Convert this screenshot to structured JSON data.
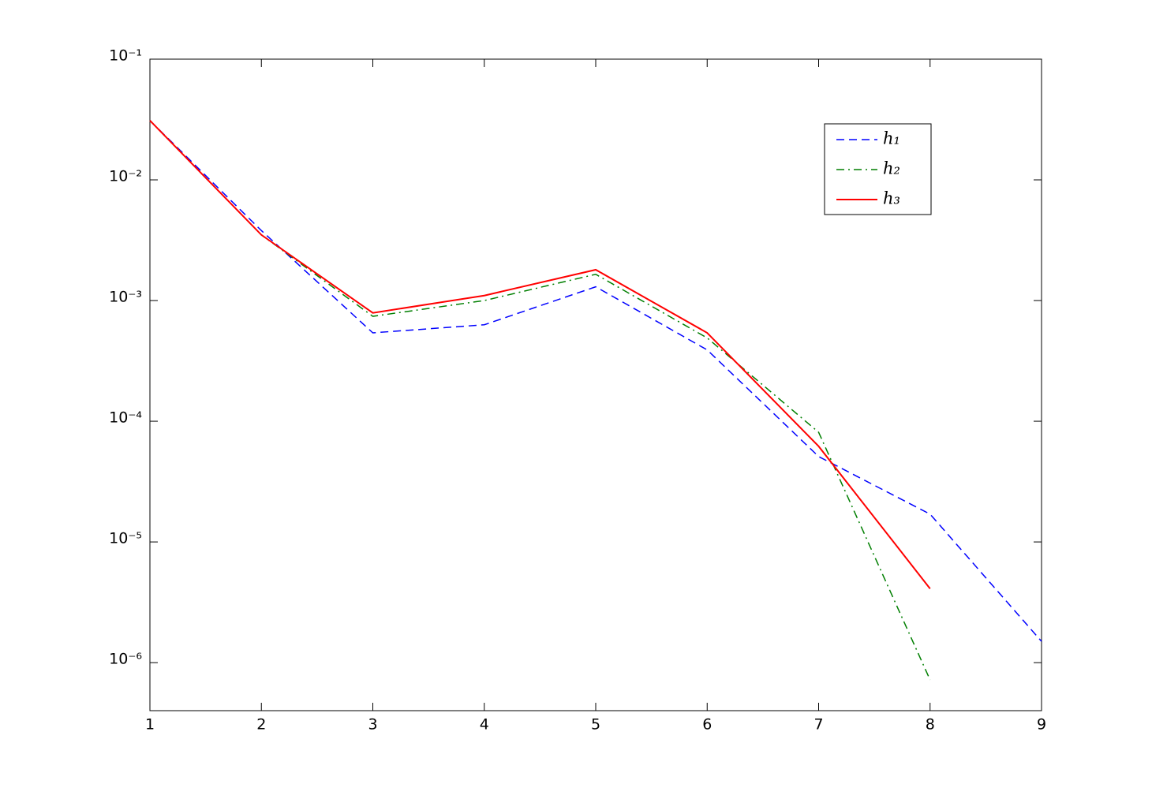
{
  "chart_data": {
    "type": "line",
    "x": [
      1,
      2,
      3,
      4,
      5,
      6,
      7,
      8,
      9
    ],
    "series": [
      {
        "name": "h₁",
        "color": "#0000ff",
        "dash": "10,6",
        "values": [
          0.031,
          0.0038,
          0.00054,
          0.00063,
          0.0013,
          0.00039,
          5.1e-05,
          1.7e-05,
          1.5e-06
        ]
      },
      {
        "name": "h₂",
        "color": "#007f00",
        "dash": "10,5,2,5",
        "values": [
          0.031,
          0.0035,
          0.00074,
          0.001,
          0.00165,
          0.00049,
          8.1e-05,
          7.2e-07,
          null
        ]
      },
      {
        "name": "h₃",
        "color": "#ff0000",
        "dash": "none",
        "values": [
          0.031,
          0.0035,
          0.00079,
          0.0011,
          0.0018,
          0.00054,
          6.2e-05,
          4.1e-06,
          null
        ]
      }
    ],
    "xlim": [
      1,
      9
    ],
    "xticks": [
      1,
      2,
      3,
      4,
      5,
      6,
      7,
      8,
      9
    ],
    "ylim": [
      4e-07,
      0.1
    ],
    "ylog": true,
    "yticks": [
      {
        "value": 0.1,
        "label": "10⁻¹"
      },
      {
        "value": 0.01,
        "label": "10⁻²"
      },
      {
        "value": 0.001,
        "label": "10⁻³"
      },
      {
        "value": 0.0001,
        "label": "10⁻⁴"
      },
      {
        "value": 1e-05,
        "label": "10⁻⁵"
      },
      {
        "value": 1e-06,
        "label": "10⁻⁶"
      }
    ],
    "legend": "upper right",
    "grid": false
  }
}
